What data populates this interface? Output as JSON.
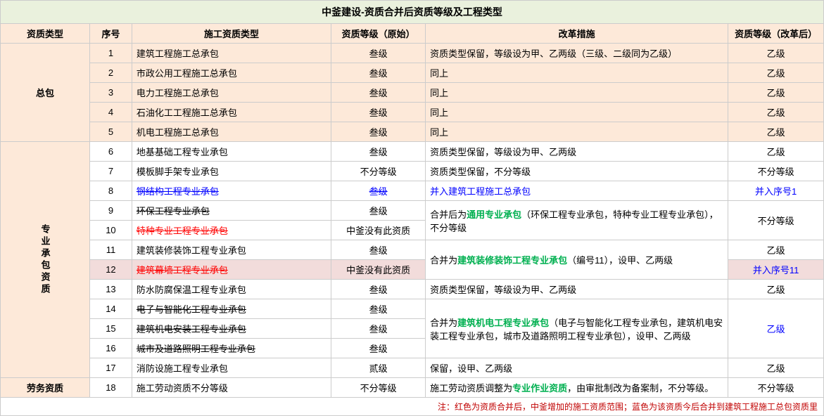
{
  "title": "中釜建设-资质合并后资质等级及工程类型",
  "headers": {
    "c1": "资质类型",
    "c2": "序号",
    "c3": "施工资质类型",
    "c4": "资质等级（原始）",
    "c5": "改革措施",
    "c6": "资质等级（改革后）"
  },
  "cat_zongbao": "总包",
  "cat_zhuanye": "专业承包资质",
  "cat_laowu": "劳务资质",
  "r1": {
    "idx": "1",
    "type": "建筑工程施工总承包",
    "orig": "叁级",
    "reform": "资质类型保留，等级设为甲、乙两级（三级、二级同为乙级）",
    "after": "乙级"
  },
  "r2": {
    "idx": "2",
    "type": "市政公用工程施工总承包",
    "orig": "叁级",
    "reform": "同上",
    "after": "乙级"
  },
  "r3": {
    "idx": "3",
    "type": "电力工程施工总承包",
    "orig": "叁级",
    "reform": "同上",
    "after": "乙级"
  },
  "r4": {
    "idx": "4",
    "type": "石油化工工程施工总承包",
    "orig": "叁级",
    "reform": "同上",
    "after": "乙级"
  },
  "r5": {
    "idx": "5",
    "type": "机电工程施工总承包",
    "orig": "叁级",
    "reform": "同上",
    "after": "乙级"
  },
  "r6": {
    "idx": "6",
    "type": "地基基础工程专业承包",
    "orig": "叁级",
    "reform": "资质类型保留，等级设为甲、乙两级",
    "after": "乙级"
  },
  "r7": {
    "idx": "7",
    "type": "模板脚手架专业承包",
    "orig": "不分等级",
    "reform": "资质类型保留，不分等级",
    "after": "不分等级"
  },
  "r8": {
    "idx": "8",
    "type": "钢结构工程专业承包",
    "orig": "叁级",
    "reform": "并入建筑工程施工总承包",
    "after": "并入序号1"
  },
  "r9": {
    "idx": "9",
    "type": "环保工程专业承包",
    "orig": "叁级",
    "reform_pre": "合并后为",
    "reform_green": "通用专业承包",
    "reform_post": "（环保工程专业承包，特种专业工程专业承包），不分等级",
    "after": "不分等级"
  },
  "r10": {
    "idx": "10",
    "type": "特种专业工程专业承包",
    "orig": "中釜没有此资质"
  },
  "r11": {
    "idx": "11",
    "type": "建筑装修装饰工程专业承包",
    "orig": "叁级",
    "reform_pre": "合并为",
    "reform_green": "建筑装修装饰工程专业承包",
    "reform_post": "（编号11），设甲、乙两级",
    "after": "乙级"
  },
  "r12": {
    "idx": "12",
    "type": "建筑幕墙工程专业承包",
    "orig": "中釜没有此资质",
    "after": "并入序号11"
  },
  "r13": {
    "idx": "13",
    "type": "防水防腐保温工程专业承包",
    "orig": "叁级",
    "reform": "资质类型保留，等级设为甲、乙两级",
    "after": "乙级"
  },
  "r14": {
    "idx": "14",
    "type": "电子与智能化工程专业承包",
    "orig": "叁级",
    "reform_pre": "合并为",
    "reform_green": "建筑机电工程专业承包",
    "reform_post": "（电子与智能化工程专业承包，建筑机电安装工程专业承包，城市及道路照明工程专业承包），设甲、乙两级",
    "after": "乙级"
  },
  "r15": {
    "idx": "15",
    "type": "建筑机电安装工程专业承包",
    "orig": "叁级"
  },
  "r16": {
    "idx": "16",
    "type": "城市及道路照明工程专业承包",
    "orig": "叁级"
  },
  "r17": {
    "idx": "17",
    "type": "消防设施工程专业承包",
    "orig": "贰级",
    "reform": "保留，设甲、乙两级",
    "after": "乙级"
  },
  "r18": {
    "idx": "18",
    "type": "施工劳动资质不分等级",
    "orig": "不分等级",
    "reform_pre": "施工劳动资质调整为",
    "reform_green": "专业作业资质",
    "reform_post": "，由审批制改为备案制，不分等级。",
    "after": "不分等级"
  },
  "footer": "注：红色为资质合并后，中釜增加的施工资质范围；蓝色为该资质今后合并到建筑工程施工总包资质里"
}
